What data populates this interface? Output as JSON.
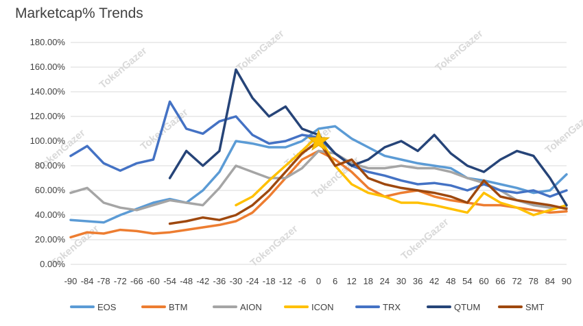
{
  "chart_data": {
    "type": "line",
    "title": "Marketcap% Trends",
    "xlabel": "",
    "ylabel": "",
    "x_range": [
      -90,
      90
    ],
    "y_range": [
      0,
      180
    ],
    "y_ticks": [
      "0.00%",
      "20.00%",
      "40.00%",
      "60.00%",
      "80.00%",
      "100.00%",
      "120.00%",
      "140.00%",
      "160.00%",
      "180.00%"
    ],
    "y_tick_values": [
      0,
      20,
      40,
      60,
      80,
      100,
      120,
      140,
      160,
      180
    ],
    "x_ticks": [
      "-90",
      "-84",
      "-78",
      "-72",
      "-66",
      "-60",
      "-54",
      "-48",
      "-42",
      "-36",
      "-30",
      "-24",
      "-18",
      "-12",
      "-6",
      "0",
      "6",
      "12",
      "18",
      "24",
      "30",
      "36",
      "42",
      "48",
      "54",
      "60",
      "66",
      "72",
      "78",
      "84",
      "90"
    ],
    "x_tick_values": [
      -90,
      -84,
      -78,
      -72,
      -66,
      -60,
      -54,
      -48,
      -42,
      -36,
      -30,
      -24,
      -18,
      -12,
      -6,
      0,
      6,
      12,
      18,
      24,
      30,
      36,
      42,
      48,
      54,
      60,
      66,
      72,
      78,
      84,
      90
    ],
    "grid": "horizontal",
    "legend_position": "bottom",
    "marker": {
      "label": "day 0 star",
      "x": 0,
      "y": 100
    },
    "watermark": "TokenGazer",
    "series": [
      {
        "name": "EOS",
        "color": "#5B9BD5",
        "x": [
          -90,
          -84,
          -78,
          -72,
          -66,
          -60,
          -54,
          -48,
          -42,
          -36,
          -30,
          -24,
          -18,
          -12,
          -6,
          0,
          6,
          12,
          18,
          24,
          30,
          36,
          42,
          48,
          54,
          60,
          66,
          72,
          78,
          84,
          90
        ],
        "y": [
          36,
          35,
          34,
          40,
          45,
          50,
          53,
          50,
          60,
          75,
          100,
          98,
          95,
          95,
          100,
          110,
          112,
          102,
          95,
          88,
          85,
          82,
          80,
          78,
          70,
          68,
          65,
          62,
          58,
          60,
          73
        ]
      },
      {
        "name": "BTM",
        "color": "#ED7D31",
        "x": [
          -90,
          -84,
          -78,
          -72,
          -66,
          -60,
          -54,
          -48,
          -42,
          -36,
          -30,
          -24,
          -18,
          -12,
          -6,
          0,
          6,
          12,
          18,
          24,
          30,
          36,
          42,
          48,
          54,
          60,
          66,
          72,
          78,
          84,
          90
        ],
        "y": [
          22,
          26,
          25,
          28,
          27,
          25,
          26,
          28,
          30,
          32,
          35,
          42,
          55,
          70,
          85,
          92,
          85,
          75,
          62,
          55,
          58,
          60,
          55,
          52,
          50,
          48,
          48,
          46,
          44,
          42,
          43
        ]
      },
      {
        "name": "AION",
        "color": "#A5A5A5",
        "x": [
          -90,
          -84,
          -78,
          -72,
          -66,
          -60,
          -54,
          -48,
          -42,
          -36,
          -30,
          -24,
          -18,
          -12,
          -6,
          0,
          6,
          12,
          18,
          24,
          30,
          36,
          42,
          48,
          54,
          60,
          66,
          72,
          78,
          84,
          90
        ],
        "y": [
          58,
          62,
          50,
          46,
          44,
          48,
          52,
          50,
          48,
          62,
          80,
          75,
          70,
          70,
          78,
          92,
          90,
          82,
          78,
          78,
          80,
          78,
          78,
          75,
          70,
          66,
          60,
          52,
          48,
          46,
          46
        ]
      },
      {
        "name": "ICON",
        "color": "#FFC000",
        "x": [
          -90,
          -84,
          -78,
          -72,
          -66,
          -60,
          -54,
          -48,
          -42,
          -36,
          -30,
          -24,
          -18,
          -12,
          -6,
          0,
          6,
          12,
          18,
          24,
          30,
          36,
          42,
          48,
          54,
          60,
          66,
          72,
          78,
          84,
          90
        ],
        "y": [
          null,
          null,
          null,
          null,
          null,
          null,
          null,
          null,
          null,
          null,
          48,
          55,
          68,
          80,
          92,
          105,
          80,
          65,
          58,
          55,
          50,
          50,
          48,
          45,
          42,
          58,
          50,
          46,
          40,
          44,
          48
        ]
      },
      {
        "name": "TRX",
        "color": "#4472C4",
        "x": [
          -90,
          -84,
          -78,
          -72,
          -66,
          -60,
          -54,
          -48,
          -42,
          -36,
          -30,
          -24,
          -18,
          -12,
          -6,
          0,
          6,
          12,
          18,
          24,
          30,
          36,
          42,
          48,
          54,
          60,
          66,
          72,
          78,
          84,
          90
        ],
        "y": [
          88,
          96,
          82,
          76,
          82,
          85,
          132,
          110,
          106,
          116,
          120,
          105,
          98,
          100,
          105,
          103,
          90,
          80,
          75,
          72,
          68,
          65,
          66,
          64,
          60,
          65,
          60,
          58,
          60,
          55,
          60
        ]
      },
      {
        "name": "QTUM",
        "color": "#264478",
        "x": [
          -90,
          -84,
          -78,
          -72,
          -66,
          -60,
          -54,
          -48,
          -42,
          -36,
          -30,
          -24,
          -18,
          -12,
          -6,
          0,
          6,
          12,
          18,
          24,
          30,
          36,
          42,
          48,
          54,
          60,
          66,
          72,
          78,
          84,
          90
        ],
        "y": [
          null,
          null,
          null,
          null,
          null,
          null,
          70,
          92,
          80,
          92,
          158,
          135,
          120,
          128,
          110,
          105,
          90,
          80,
          85,
          95,
          100,
          92,
          105,
          90,
          80,
          75,
          85,
          92,
          88,
          70,
          48
        ]
      },
      {
        "name": "SMT",
        "color": "#9E480E",
        "x": [
          -90,
          -84,
          -78,
          -72,
          -66,
          -60,
          -54,
          -48,
          -42,
          -36,
          -30,
          -24,
          -18,
          -12,
          -6,
          0,
          6,
          12,
          18,
          24,
          30,
          36,
          42,
          48,
          54,
          60,
          66,
          72,
          78,
          84,
          90
        ],
        "y": [
          null,
          null,
          null,
          null,
          null,
          null,
          33,
          35,
          38,
          36,
          40,
          48,
          60,
          75,
          90,
          100,
          80,
          85,
          70,
          65,
          62,
          60,
          58,
          55,
          50,
          68,
          55,
          52,
          50,
          48,
          45
        ]
      }
    ]
  }
}
